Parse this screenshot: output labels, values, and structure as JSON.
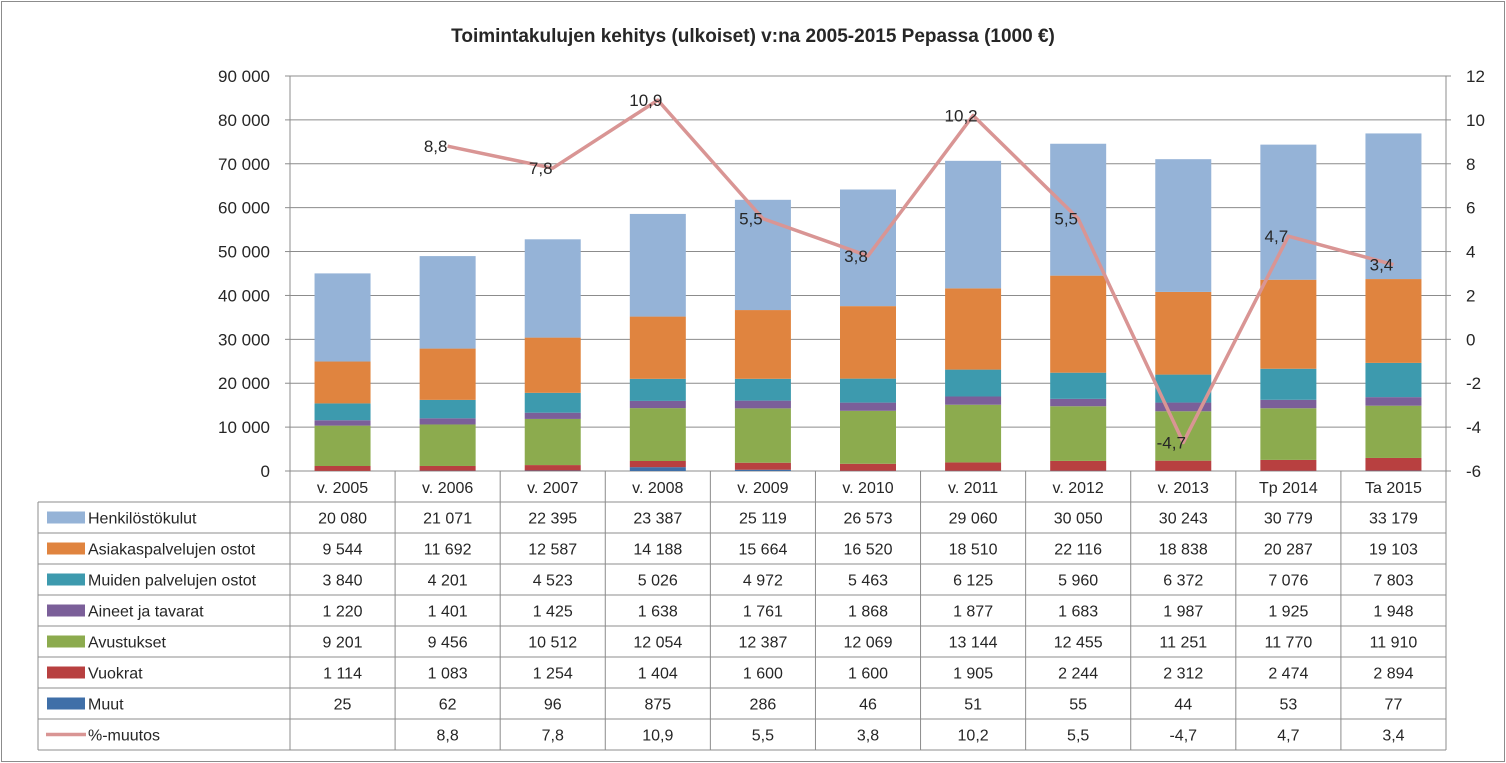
{
  "chart_data": {
    "type": "bar",
    "stacked": true,
    "title": "Toimintakulujen  kehitys (ulkoiset) v:na 2005-2015 Pepassa (1000 €)",
    "categories": [
      "v. 2005",
      "v. 2006",
      "v. 2007",
      "v. 2008",
      "v. 2009",
      "v. 2010",
      "v. 2011",
      "v. 2012",
      "v. 2013",
      "Tp 2014",
      "Ta 2015"
    ],
    "y_left": {
      "ylim": [
        0,
        90000
      ],
      "ticks": [
        0,
        10000,
        20000,
        30000,
        40000,
        50000,
        60000,
        70000,
        80000,
        90000
      ],
      "tick_labels": [
        "0",
        "10 000",
        "20 000",
        "30 000",
        "40 000",
        "50 000",
        "60 000",
        "70 000",
        "80 000",
        "90 000"
      ]
    },
    "y_right": {
      "ylim": [
        -6,
        12
      ],
      "ticks": [
        -6,
        -4,
        -2,
        0,
        2,
        4,
        6,
        8,
        10,
        12
      ],
      "tick_labels": [
        "-6",
        "-4",
        "-2",
        "0",
        "2",
        "4",
        "6",
        "8",
        "10",
        "12"
      ]
    },
    "grid": true,
    "series": [
      {
        "name": "Henkilöstökulut",
        "color": "#95b3d7",
        "values": [
          20080,
          21071,
          22395,
          23387,
          25119,
          26573,
          29060,
          30050,
          30243,
          30779,
          33179
        ],
        "labels": [
          "20 080",
          "21 071",
          "22 395",
          "23 387",
          "25 119",
          "26 573",
          "29 060",
          "30 050",
          "30 243",
          "30 779",
          "33 179"
        ]
      },
      {
        "name": "Asiakaspalvelujen ostot",
        "color": "#e0843f",
        "values": [
          9544,
          11692,
          12587,
          14188,
          15664,
          16520,
          18510,
          22116,
          18838,
          20287,
          19103
        ],
        "labels": [
          "9 544",
          "11 692",
          "12 587",
          "14 188",
          "15 664",
          "16 520",
          "18 510",
          "22 116",
          "18 838",
          "20 287",
          "19 103"
        ]
      },
      {
        "name": "Muiden palvelujen ostot",
        "color": "#3d9aae",
        "values": [
          3840,
          4201,
          4523,
          5026,
          4972,
          5463,
          6125,
          5960,
          6372,
          7076,
          7803
        ],
        "labels": [
          "3 840",
          "4 201",
          "4 523",
          "5 026",
          "4 972",
          "5 463",
          "6 125",
          "5 960",
          "6 372",
          "7 076",
          "7 803"
        ]
      },
      {
        "name": "Aineet ja tavarat",
        "color": "#7b5f99",
        "values": [
          1220,
          1401,
          1425,
          1638,
          1761,
          1868,
          1877,
          1683,
          1987,
          1925,
          1948
        ],
        "labels": [
          "1 220",
          "1 401",
          "1 425",
          "1 638",
          "1 761",
          "1 868",
          "1 877",
          "1 683",
          "1 987",
          "1 925",
          "1 948"
        ]
      },
      {
        "name": "Avustukset",
        "color": "#8cab4e",
        "values": [
          9201,
          9456,
          10512,
          12054,
          12387,
          12069,
          13144,
          12455,
          11251,
          11770,
          11910
        ],
        "labels": [
          "9 201",
          "9 456",
          "10 512",
          "12 054",
          "12 387",
          "12 069",
          "13 144",
          "12 455",
          "11 251",
          "11 770",
          "11 910"
        ]
      },
      {
        "name": "Vuokrat",
        "color": "#b84040",
        "values": [
          1114,
          1083,
          1254,
          1404,
          1600,
          1600,
          1905,
          2244,
          2312,
          2474,
          2894
        ],
        "labels": [
          "1 114",
          "1 083",
          "1 254",
          "1 404",
          "1 600",
          "1 600",
          "1 905",
          "2 244",
          "2 312",
          "2 474",
          "2 894"
        ]
      },
      {
        "name": "Muut",
        "color": "#3f6fa8",
        "values": [
          25,
          62,
          96,
          875,
          286,
          46,
          51,
          55,
          44,
          53,
          77
        ],
        "labels": [
          "25",
          "62",
          "96",
          "875",
          "286",
          "46",
          "51",
          "55",
          "44",
          "53",
          "77"
        ]
      }
    ],
    "line_series": {
      "name": "%-muutos",
      "color": "#d99594",
      "axis": "right",
      "values": [
        null,
        8.8,
        7.8,
        10.9,
        5.5,
        3.8,
        10.2,
        5.5,
        -4.7,
        4.7,
        3.4
      ],
      "labels": [
        "",
        "8,8",
        "7,8",
        "10,9",
        "5,5",
        "3,8",
        "10,2",
        "5,5",
        "-4,7",
        "4,7",
        "3,4"
      ]
    }
  }
}
